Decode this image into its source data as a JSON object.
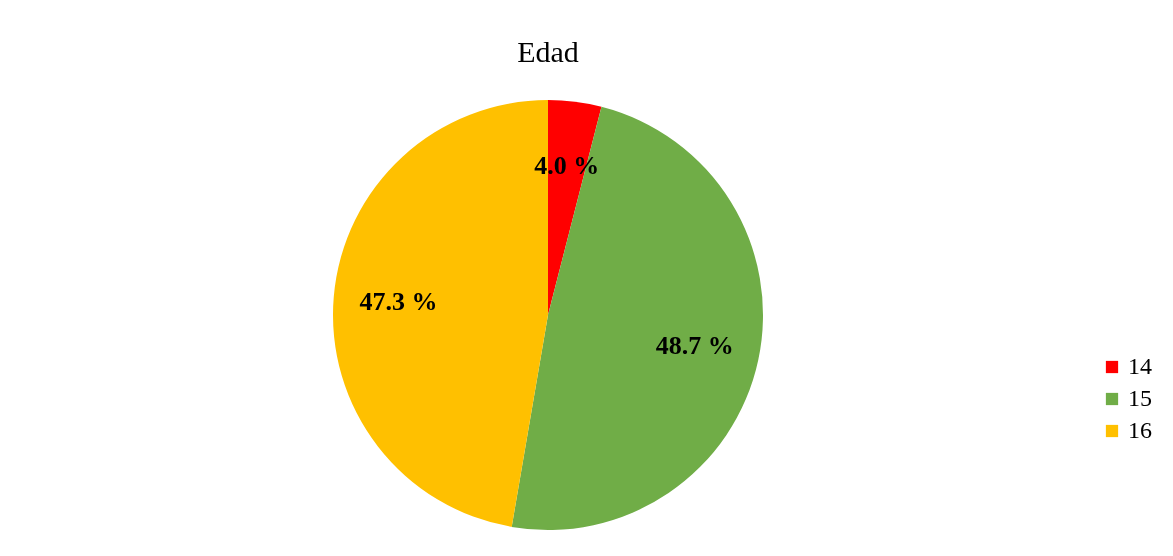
{
  "chart_data": {
    "type": "pie",
    "title": "Edad",
    "categories": [
      "14",
      "15",
      "16"
    ],
    "values": [
      4.0,
      48.7,
      47.3
    ],
    "colors": [
      "#ff0000",
      "#70ad47",
      "#ffc000"
    ],
    "value_labels": [
      "4.0 %",
      "48.7 %",
      "47.3 %"
    ],
    "legend": "right"
  }
}
